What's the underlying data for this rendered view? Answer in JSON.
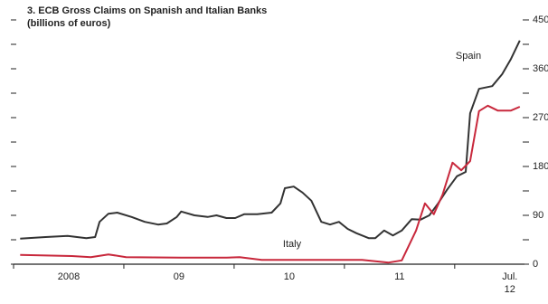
{
  "chart_data": {
    "type": "line",
    "title": "3. ECB Gross Claims on Spanish and Italian Banks",
    "subtitle": "(billions of euros)",
    "xlim": [
      2008,
      2012.6
    ],
    "xticks": [
      {
        "value": 2008.5,
        "label": "2008"
      },
      {
        "value": 2009.5,
        "label": "09"
      },
      {
        "value": 2010.5,
        "label": "10"
      },
      {
        "value": 2011.5,
        "label": "11"
      },
      {
        "value": 2012.5,
        "label": "Jul. 12"
      }
    ],
    "year_boundaries": [
      2008,
      2009,
      2010,
      2011,
      2012
    ],
    "ylim": [
      0,
      450
    ],
    "yticks": [
      0,
      90,
      180,
      270,
      360,
      450
    ],
    "minor_yticks": [
      45,
      135,
      225,
      315,
      405
    ],
    "series": [
      {
        "name": "Spain",
        "color": "#333333",
        "x": [
          2008.06,
          2008.29,
          2008.49,
          2008.66,
          2008.74,
          2008.78,
          2008.86,
          2008.94,
          2009.07,
          2009.19,
          2009.31,
          2009.39,
          2009.48,
          2009.52,
          2009.64,
          2009.76,
          2009.84,
          2009.93,
          2010.01,
          2010.09,
          2010.21,
          2010.34,
          2010.42,
          2010.46,
          2010.54,
          2010.62,
          2010.7,
          2010.79,
          2010.87,
          2010.95,
          2011.03,
          2011.11,
          2011.22,
          2011.28,
          2011.36,
          2011.44,
          2011.52,
          2011.61,
          2011.69,
          2011.77,
          2011.85,
          2011.93,
          2012.02,
          2012.1,
          2012.14,
          2012.22,
          2012.34,
          2012.43,
          2012.51,
          2012.59
        ],
        "values": [
          47,
          50,
          52,
          48,
          50,
          78,
          93,
          95,
          87,
          78,
          73,
          75,
          87,
          97,
          90,
          87,
          90,
          85,
          85,
          92,
          92,
          95,
          112,
          140,
          143,
          132,
          117,
          78,
          73,
          78,
          65,
          57,
          48,
          48,
          62,
          53,
          62,
          83,
          82,
          90,
          112,
          137,
          162,
          170,
          278,
          323,
          328,
          350,
          378,
          412
        ]
      },
      {
        "name": "Italy",
        "color": "#c8283c",
        "x": [
          2008.06,
          2008.53,
          2008.7,
          2008.86,
          2009.02,
          2009.52,
          2009.93,
          2010.05,
          2010.25,
          2010.83,
          2011.16,
          2011.4,
          2011.52,
          2011.65,
          2011.73,
          2011.81,
          2011.89,
          2011.98,
          2012.06,
          2012.14,
          2012.22,
          2012.3,
          2012.39,
          2012.51,
          2012.59
        ],
        "values": [
          17,
          15,
          13,
          18,
          13,
          12,
          12,
          13,
          8,
          8,
          8,
          3,
          7,
          62,
          112,
          92,
          128,
          187,
          173,
          190,
          282,
          292,
          283,
          283,
          290
        ]
      }
    ]
  }
}
